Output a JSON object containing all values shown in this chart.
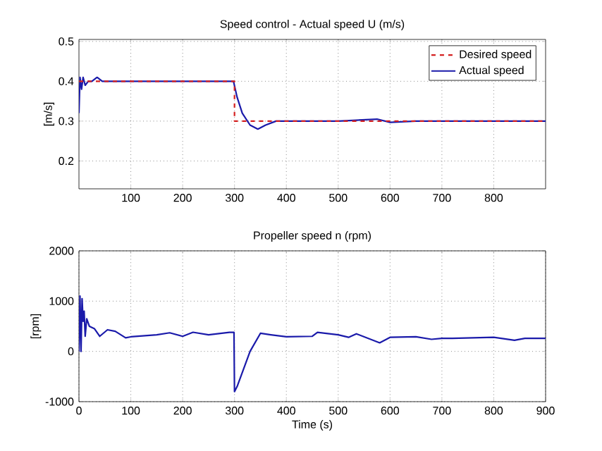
{
  "chart_data": [
    {
      "type": "line",
      "title": "Speed control - Actual speed U (m/s)",
      "ylabel": "[m/s]",
      "xlim": [
        0,
        900
      ],
      "ylim": [
        0.13,
        0.505
      ],
      "xticks": [
        100,
        200,
        300,
        400,
        500,
        600,
        700,
        800
      ],
      "yticks": [
        0.2,
        0.3,
        0.4,
        0.5
      ],
      "grid": true,
      "legend": "top right",
      "series": [
        {
          "name": "Desired speed",
          "color": "#d42020",
          "line_style": "dashed",
          "x": [
            0,
            300,
            300,
            900
          ],
          "values": [
            0.4,
            0.4,
            0.3,
            0.3
          ]
        },
        {
          "name": "Actual speed",
          "color": "#1a1aaa",
          "line_style": "solid",
          "x": [
            0,
            2,
            5,
            8,
            12,
            18,
            25,
            35,
            45,
            60,
            100,
            150,
            200,
            250,
            298,
            305,
            315,
            330,
            345,
            360,
            380,
            450,
            500,
            575,
            600,
            650,
            900
          ],
          "values": [
            0.32,
            0.41,
            0.38,
            0.41,
            0.39,
            0.4,
            0.4,
            0.41,
            0.4,
            0.4,
            0.4,
            0.4,
            0.4,
            0.4,
            0.4,
            0.36,
            0.32,
            0.29,
            0.28,
            0.29,
            0.3,
            0.3,
            0.3,
            0.305,
            0.297,
            0.3,
            0.3
          ]
        }
      ]
    },
    {
      "type": "line",
      "title": "Propeller speed n (rpm)",
      "xlabel": "Time (s)",
      "ylabel": "[rpm]",
      "xlim": [
        0,
        900
      ],
      "ylim": [
        -1000,
        2000
      ],
      "xticks": [
        0,
        100,
        200,
        300,
        400,
        500,
        600,
        700,
        800,
        900
      ],
      "yticks": [
        -1000,
        0,
        1000,
        2000
      ],
      "grid": true,
      "series": [
        {
          "color": "#1a1aaa",
          "line_style": "solid",
          "x": [
            0,
            2,
            4,
            6,
            8,
            10,
            12,
            15,
            20,
            30,
            40,
            55,
            70,
            90,
            100,
            150,
            175,
            200,
            220,
            250,
            290,
            299,
            300,
            305,
            330,
            350,
            370,
            400,
            450,
            460,
            500,
            520,
            535,
            560,
            580,
            600,
            650,
            680,
            700,
            720,
            800,
            840,
            860,
            900
          ],
          "values": [
            0,
            1100,
            0,
            1050,
            600,
            800,
            300,
            650,
            500,
            450,
            300,
            430,
            400,
            270,
            290,
            330,
            370,
            300,
            380,
            330,
            380,
            380,
            -800,
            -700,
            0,
            360,
            330,
            290,
            300,
            380,
            330,
            280,
            350,
            250,
            170,
            280,
            290,
            240,
            260,
            260,
            280,
            220,
            260,
            260
          ]
        }
      ]
    }
  ]
}
